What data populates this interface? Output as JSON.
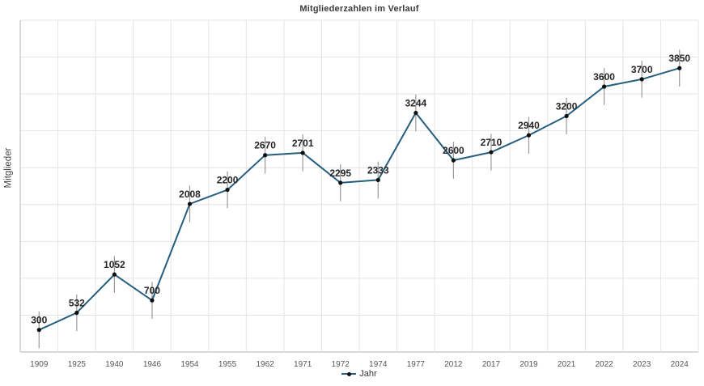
{
  "chart": {
    "title": "Mitgliederzahlen im Verlauf",
    "ylabel": "Mitglieder",
    "legend": {
      "label": "Jahr"
    }
  },
  "chart_data": {
    "type": "line",
    "title": "Mitgliederzahlen im Verlauf",
    "xlabel": "",
    "ylabel": "Mitglieder",
    "categories": [
      "1909",
      "1925",
      "1940",
      "1946",
      "1954",
      "1955",
      "1962",
      "1971",
      "1972",
      "1974",
      "1977",
      "2012",
      "2017",
      "2019",
      "2021",
      "2022",
      "2023",
      "2024"
    ],
    "series": [
      {
        "name": "Jahr",
        "values": [
          300,
          532,
          1052,
          700,
          2008,
          2200,
          2670,
          2701,
          2295,
          2333,
          3244,
          2600,
          2710,
          2940,
          3200,
          3600,
          3700,
          3850
        ]
      }
    ],
    "error_bar_value": 250,
    "data_labels": true,
    "ylim": [
      0,
      4500
    ],
    "y_grid_step": 500,
    "grid": "both",
    "y_tick_labels_shown": false,
    "legend_position": "bottom-center",
    "colors": {
      "line": "#255e7e",
      "point": "#0e0e0e",
      "error_bar": "#9a9a9a",
      "grid": "#e4e4e4",
      "axis": "#b5b5b5",
      "data_label": "#262626",
      "tick_label": "#565656",
      "title": "#3a3a3a"
    }
  }
}
